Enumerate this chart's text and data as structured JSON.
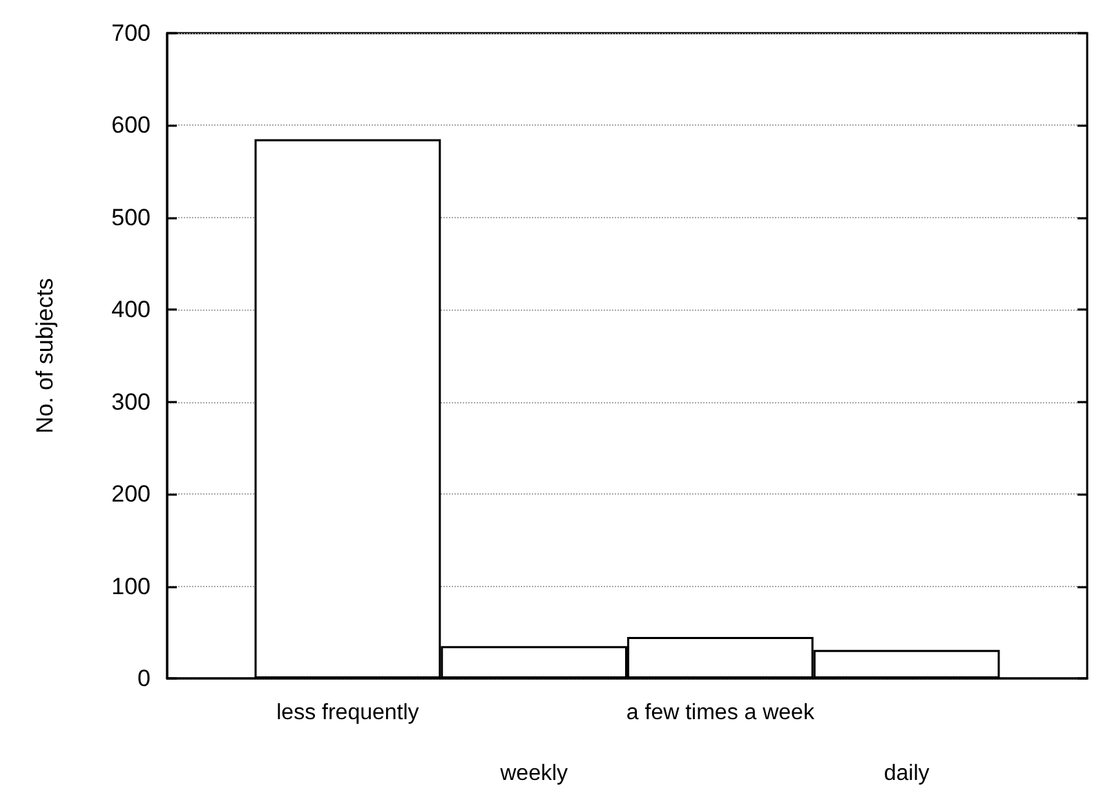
{
  "chart_data": {
    "type": "bar",
    "ylabel": "No. of subjects",
    "categories": [
      "less frequently",
      "weekly",
      "a few times a week",
      "daily"
    ],
    "values": [
      585,
      35,
      45,
      31
    ],
    "color": "#ffffff",
    "ylim": [
      0,
      700
    ],
    "yticks": [
      0,
      100,
      200,
      300,
      400,
      500,
      600,
      700
    ],
    "grid": "y"
  }
}
